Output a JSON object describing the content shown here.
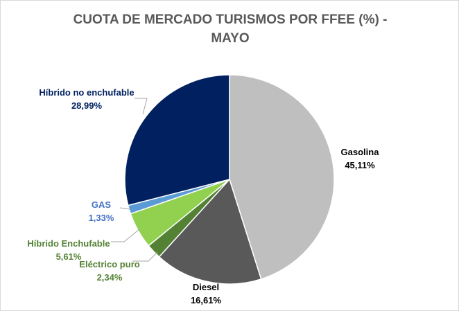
{
  "chart_data": {
    "type": "pie",
    "title_line1": "CUOTA DE MERCADO TURISMOS POR FFEE (%) -",
    "title_line2": "MAYO",
    "slices": [
      {
        "name": "Gasolina",
        "value": 45.11,
        "label": "45,11%",
        "color": "#bfbfbf",
        "label_color": "#000000"
      },
      {
        "name": "Diesel",
        "value": 16.61,
        "label": "16,61%",
        "color": "#595959",
        "label_color": "#000000"
      },
      {
        "name": "Eléctrico puro",
        "value": 2.34,
        "label": "2,34%",
        "color": "#548235",
        "label_color": "#548235"
      },
      {
        "name": "Híbrido Enchufable",
        "value": 5.61,
        "label": "5,61%",
        "color": "#92d050",
        "label_color": "#548235"
      },
      {
        "name": "GAS",
        "value": 1.33,
        "label": "1,33%",
        "color": "#5b9bd5",
        "label_color": "#4472c4"
      },
      {
        "name": "Híbrido no enchufable",
        "value": 28.99,
        "label": "28,99%",
        "color": "#002060",
        "label_color": "#002060"
      }
    ]
  }
}
